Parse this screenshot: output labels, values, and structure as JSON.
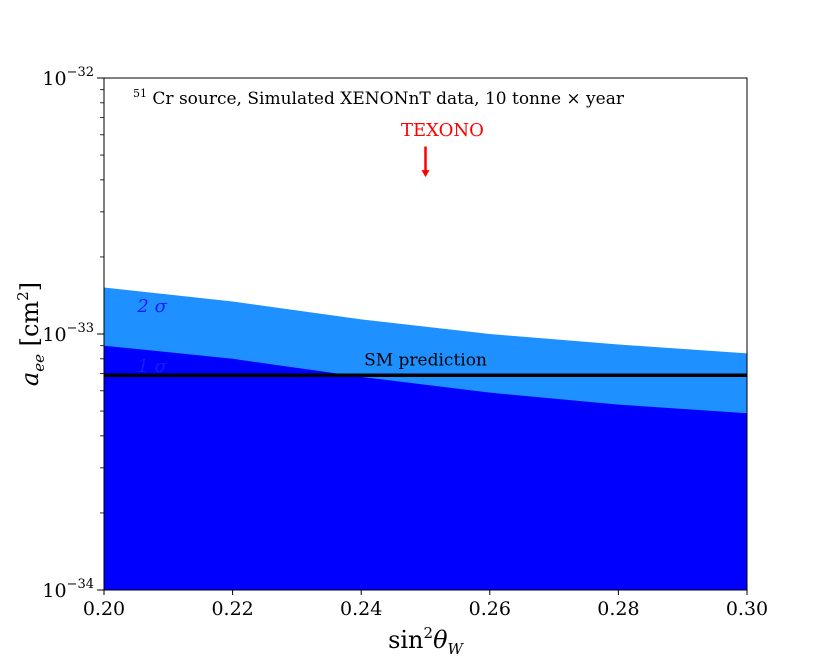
{
  "chart_data": {
    "type": "area",
    "x_axis": {
      "label_main": "sin",
      "label_sup": "2",
      "label_theta": "θ",
      "label_sub": "W",
      "xlim": [
        0.2,
        0.3
      ],
      "ticks": [
        0.2,
        0.22,
        0.24,
        0.26,
        0.28,
        0.3
      ],
      "tick_labels": [
        "0.20",
        "0.22",
        "0.24",
        "0.26",
        "0.28",
        "0.30"
      ]
    },
    "y_axis": {
      "label_var": "a",
      "label_sub": "ee",
      "label_unit": "[cm",
      "label_unit_sup": "2",
      "label_unit_end": "]",
      "scale": "log",
      "ylim": [
        1e-34,
        1e-32
      ],
      "major_ticks": [
        1e-34,
        1e-33,
        1e-32
      ],
      "major_tick_base": "10",
      "major_tick_exps": [
        "−34",
        "−33",
        "−32"
      ]
    },
    "series": [
      {
        "name": "2 σ",
        "color": "#1e90ff",
        "x": [
          0.2,
          0.22,
          0.24,
          0.26,
          0.28,
          0.3
        ],
        "y": [
          1.52e-33,
          1.34e-33,
          1.14e-33,
          1e-33,
          9.1e-34,
          8.4e-34
        ]
      },
      {
        "name": "1 σ",
        "color": "#0000ff",
        "x": [
          0.2,
          0.22,
          0.24,
          0.26,
          0.28,
          0.3
        ],
        "y": [
          9e-34,
          8e-34,
          6.8e-34,
          5.9e-34,
          5.3e-34,
          4.9e-34
        ]
      }
    ],
    "reference_line": {
      "label": "SM prediction",
      "y": 6.9e-34,
      "color": "#000000"
    },
    "annotations": {
      "source_sup": "51",
      "source_text": " Cr source, Simulated XENONnT data, 10 tonne × year",
      "texono": {
        "label": "TEXONO",
        "x": 0.25,
        "arrow_tail_y": 5.4e-33,
        "arrow_head_y": 4.1e-33,
        "color": "#ff0000"
      },
      "two_sigma_label": "2 σ",
      "one_sigma_label": "1 σ"
    }
  }
}
